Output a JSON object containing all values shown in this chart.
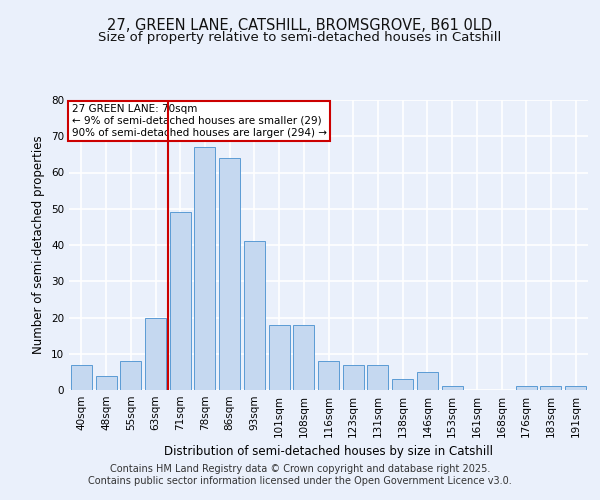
{
  "title_line1": "27, GREEN LANE, CATSHILL, BROMSGROVE, B61 0LD",
  "title_line2": "Size of property relative to semi-detached houses in Catshill",
  "xlabel": "Distribution of semi-detached houses by size in Catshill",
  "ylabel": "Number of semi-detached properties",
  "categories": [
    "40sqm",
    "48sqm",
    "55sqm",
    "63sqm",
    "71sqm",
    "78sqm",
    "86sqm",
    "93sqm",
    "101sqm",
    "108sqm",
    "116sqm",
    "123sqm",
    "131sqm",
    "138sqm",
    "146sqm",
    "153sqm",
    "161sqm",
    "168sqm",
    "176sqm",
    "183sqm",
    "191sqm"
  ],
  "values": [
    7,
    4,
    8,
    20,
    49,
    67,
    64,
    41,
    18,
    18,
    8,
    7,
    7,
    3,
    5,
    1,
    0,
    0,
    1,
    1,
    1
  ],
  "bar_color": "#c5d8f0",
  "bar_edge_color": "#5b9bd5",
  "vline_idx": 4,
  "vline_color": "#cc0000",
  "annotation_text": "27 GREEN LANE: 70sqm\n← 9% of semi-detached houses are smaller (29)\n90% of semi-detached houses are larger (294) →",
  "annotation_box_color": "#cc0000",
  "ylim": [
    0,
    80
  ],
  "yticks": [
    0,
    10,
    20,
    30,
    40,
    50,
    60,
    70,
    80
  ],
  "footer_line1": "Contains HM Land Registry data © Crown copyright and database right 2025.",
  "footer_line2": "Contains public sector information licensed under the Open Government Licence v3.0.",
  "bg_color": "#eaf0fb",
  "plot_bg_color": "#eaf0fb",
  "grid_color": "#ffffff",
  "title_fontsize": 10.5,
  "subtitle_fontsize": 9.5,
  "label_fontsize": 8.5,
  "tick_fontsize": 7.5,
  "footer_fontsize": 7.0,
  "ann_fontsize": 7.5
}
